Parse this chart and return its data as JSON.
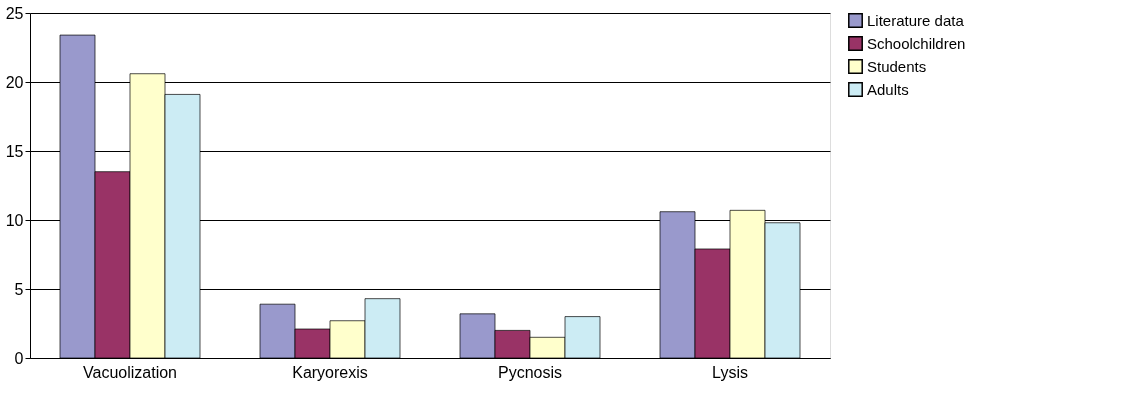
{
  "chart_data": {
    "type": "bar",
    "categories": [
      "Vacuolization",
      "Karyorexis",
      "Pycnosis",
      "Lysis"
    ],
    "series": [
      {
        "name": "Literature data",
        "color": "#9999cc",
        "values": [
          23.4,
          3.9,
          3.2,
          10.6
        ]
      },
      {
        "name": "Schoolchildren",
        "color": "#993366",
        "values": [
          13.5,
          2.1,
          2.0,
          7.9
        ]
      },
      {
        "name": "Students",
        "color": "#ffffcc",
        "values": [
          20.6,
          2.7,
          1.5,
          10.7
        ]
      },
      {
        "name": "Adults",
        "color": "#ccecf4",
        "values": [
          19.1,
          4.3,
          3.0,
          9.8
        ]
      }
    ],
    "ylim": [
      0,
      25
    ],
    "yticks": [
      0,
      5,
      10,
      15,
      20,
      25
    ],
    "grid": "y",
    "legend": "right"
  }
}
